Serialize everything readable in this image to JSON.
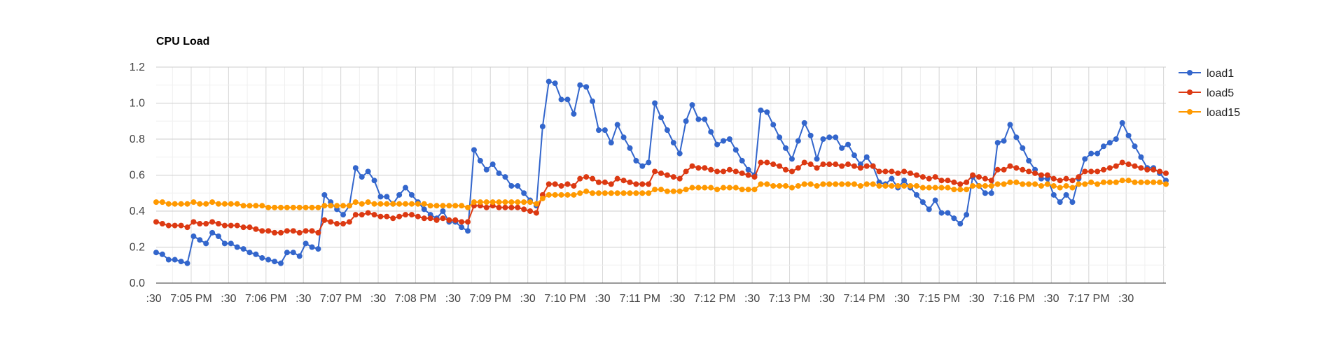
{
  "chart_data": {
    "type": "line",
    "title": "CPU Load",
    "xlabel": "",
    "ylabel": "",
    "ylim": [
      0,
      1.2
    ],
    "yticks": [
      "0.0",
      "0.2",
      "0.4",
      "0.6",
      "0.8",
      "1.0",
      "1.2"
    ],
    "xticks": [
      ":30",
      "7:05 PM",
      ":30",
      "7:06 PM",
      ":30",
      "7:07 PM",
      ":30",
      "7:08 PM",
      ":30",
      "7:09 PM",
      ":30",
      "7:10 PM",
      ":30",
      "7:11 PM",
      ":30",
      "7:12 PM",
      ":30",
      "7:13 PM",
      ":30",
      "7:14 PM",
      ":30",
      "7:15 PM",
      ":30",
      "7:16 PM",
      ":30",
      "7:17 PM",
      ":30"
    ],
    "x_interval_seconds": 5,
    "grid": true,
    "legend_position": "right",
    "series": [
      {
        "name": "load1",
        "color": "#3366cc",
        "values": [
          0.17,
          0.16,
          0.13,
          0.13,
          0.12,
          0.11,
          0.26,
          0.24,
          0.22,
          0.28,
          0.26,
          0.22,
          0.22,
          0.2,
          0.19,
          0.17,
          0.16,
          0.14,
          0.13,
          0.12,
          0.11,
          0.17,
          0.17,
          0.15,
          0.22,
          0.2,
          0.19,
          0.49,
          0.45,
          0.41,
          0.38,
          0.43,
          0.64,
          0.59,
          0.62,
          0.57,
          0.48,
          0.48,
          0.44,
          0.49,
          0.53,
          0.49,
          0.45,
          0.41,
          0.38,
          0.36,
          0.4,
          0.34,
          0.34,
          0.31,
          0.29,
          0.74,
          0.68,
          0.63,
          0.66,
          0.61,
          0.59,
          0.54,
          0.54,
          0.5,
          0.46,
          0.43,
          0.87,
          1.12,
          1.11,
          1.02,
          1.02,
          0.94,
          1.1,
          1.09,
          1.01,
          0.85,
          0.85,
          0.78,
          0.88,
          0.81,
          0.75,
          0.68,
          0.65,
          0.67,
          1.0,
          0.92,
          0.85,
          0.78,
          0.72,
          0.9,
          0.99,
          0.91,
          0.91,
          0.84,
          0.77,
          0.79,
          0.8,
          0.74,
          0.68,
          0.63,
          0.6,
          0.96,
          0.95,
          0.88,
          0.81,
          0.75,
          0.69,
          0.79,
          0.89,
          0.82,
          0.69,
          0.8,
          0.81,
          0.81,
          0.75,
          0.77,
          0.71,
          0.66,
          0.7,
          0.65,
          0.56,
          0.55,
          0.58,
          0.53,
          0.57,
          0.53,
          0.49,
          0.45,
          0.41,
          0.46,
          0.39,
          0.39,
          0.36,
          0.33,
          0.38,
          0.59,
          0.54,
          0.5,
          0.5,
          0.78,
          0.79,
          0.88,
          0.81,
          0.75,
          0.68,
          0.63,
          0.58,
          0.58,
          0.49,
          0.45,
          0.49,
          0.45,
          0.58,
          0.69,
          0.72,
          0.72,
          0.76,
          0.78,
          0.8,
          0.89,
          0.82,
          0.76,
          0.7,
          0.64,
          0.64,
          0.61,
          0.57
        ]
      },
      {
        "name": "load5",
        "color": "#dc3912",
        "values": [
          0.34,
          0.33,
          0.32,
          0.32,
          0.32,
          0.31,
          0.34,
          0.33,
          0.33,
          0.34,
          0.33,
          0.32,
          0.32,
          0.32,
          0.31,
          0.31,
          0.3,
          0.29,
          0.29,
          0.28,
          0.28,
          0.29,
          0.29,
          0.28,
          0.29,
          0.29,
          0.28,
          0.35,
          0.34,
          0.33,
          0.33,
          0.34,
          0.38,
          0.38,
          0.39,
          0.38,
          0.37,
          0.37,
          0.36,
          0.37,
          0.38,
          0.38,
          0.37,
          0.36,
          0.36,
          0.35,
          0.36,
          0.35,
          0.35,
          0.34,
          0.34,
          0.43,
          0.43,
          0.42,
          0.43,
          0.42,
          0.42,
          0.42,
          0.42,
          0.41,
          0.4,
          0.39,
          0.49,
          0.55,
          0.55,
          0.54,
          0.55,
          0.54,
          0.58,
          0.59,
          0.58,
          0.56,
          0.56,
          0.55,
          0.58,
          0.57,
          0.56,
          0.55,
          0.55,
          0.55,
          0.62,
          0.61,
          0.6,
          0.59,
          0.58,
          0.62,
          0.65,
          0.64,
          0.64,
          0.63,
          0.62,
          0.62,
          0.63,
          0.62,
          0.61,
          0.6,
          0.59,
          0.67,
          0.67,
          0.66,
          0.65,
          0.63,
          0.62,
          0.64,
          0.67,
          0.66,
          0.64,
          0.66,
          0.66,
          0.66,
          0.65,
          0.66,
          0.65,
          0.64,
          0.65,
          0.65,
          0.62,
          0.62,
          0.62,
          0.61,
          0.62,
          0.61,
          0.6,
          0.59,
          0.58,
          0.59,
          0.57,
          0.57,
          0.56,
          0.55,
          0.56,
          0.6,
          0.59,
          0.58,
          0.57,
          0.63,
          0.63,
          0.65,
          0.64,
          0.63,
          0.62,
          0.61,
          0.6,
          0.6,
          0.58,
          0.57,
          0.58,
          0.57,
          0.59,
          0.62,
          0.62,
          0.62,
          0.63,
          0.64,
          0.65,
          0.67,
          0.66,
          0.65,
          0.64,
          0.63,
          0.63,
          0.62,
          0.61
        ]
      },
      {
        "name": "load15",
        "color": "#ff9900",
        "values": [
          0.45,
          0.45,
          0.44,
          0.44,
          0.44,
          0.44,
          0.45,
          0.44,
          0.44,
          0.45,
          0.44,
          0.44,
          0.44,
          0.44,
          0.43,
          0.43,
          0.43,
          0.43,
          0.42,
          0.42,
          0.42,
          0.42,
          0.42,
          0.42,
          0.42,
          0.42,
          0.42,
          0.43,
          0.43,
          0.43,
          0.43,
          0.43,
          0.45,
          0.44,
          0.45,
          0.44,
          0.44,
          0.44,
          0.44,
          0.44,
          0.44,
          0.44,
          0.44,
          0.44,
          0.43,
          0.43,
          0.43,
          0.43,
          0.43,
          0.43,
          0.42,
          0.45,
          0.45,
          0.45,
          0.45,
          0.45,
          0.45,
          0.45,
          0.45,
          0.45,
          0.45,
          0.44,
          0.47,
          0.49,
          0.49,
          0.49,
          0.49,
          0.49,
          0.5,
          0.51,
          0.5,
          0.5,
          0.5,
          0.5,
          0.5,
          0.5,
          0.5,
          0.5,
          0.5,
          0.5,
          0.52,
          0.52,
          0.51,
          0.51,
          0.51,
          0.52,
          0.53,
          0.53,
          0.53,
          0.53,
          0.52,
          0.53,
          0.53,
          0.53,
          0.52,
          0.52,
          0.52,
          0.55,
          0.55,
          0.54,
          0.54,
          0.54,
          0.53,
          0.54,
          0.55,
          0.55,
          0.54,
          0.55,
          0.55,
          0.55,
          0.55,
          0.55,
          0.55,
          0.54,
          0.55,
          0.55,
          0.54,
          0.54,
          0.54,
          0.54,
          0.54,
          0.54,
          0.54,
          0.53,
          0.53,
          0.53,
          0.53,
          0.53,
          0.52,
          0.52,
          0.52,
          0.54,
          0.54,
          0.54,
          0.54,
          0.55,
          0.55,
          0.56,
          0.56,
          0.55,
          0.55,
          0.55,
          0.54,
          0.55,
          0.54,
          0.53,
          0.54,
          0.53,
          0.55,
          0.55,
          0.56,
          0.55,
          0.56,
          0.56,
          0.56,
          0.57,
          0.57,
          0.56,
          0.56,
          0.56,
          0.56,
          0.56,
          0.55
        ]
      }
    ]
  }
}
